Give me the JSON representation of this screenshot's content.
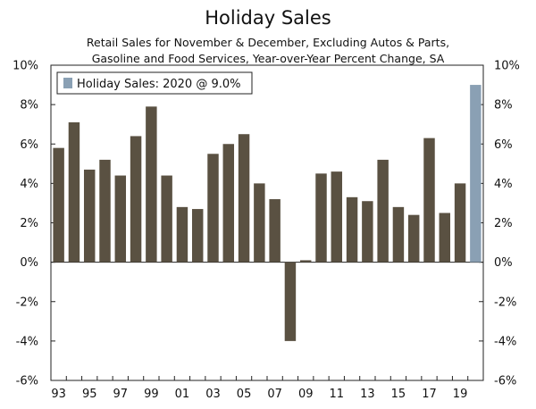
{
  "chart_data": {
    "type": "bar",
    "title": "Holiday Sales",
    "subtitle": [
      "Retail Sales for November & December, Excluding Autos & Parts,",
      "Gasoline and Food Services, Year-over-Year Percent Change, SA"
    ],
    "years": [
      1993,
      1994,
      1995,
      1996,
      1997,
      1998,
      1999,
      2000,
      2001,
      2002,
      2003,
      2004,
      2005,
      2006,
      2007,
      2008,
      2009,
      2010,
      2011,
      2012,
      2013,
      2014,
      2015,
      2016,
      2017,
      2018,
      2019,
      2020
    ],
    "values": [
      5.8,
      7.1,
      4.7,
      5.2,
      4.4,
      6.4,
      7.9,
      4.4,
      2.8,
      2.7,
      5.5,
      6.0,
      6.5,
      4.0,
      3.2,
      -4.0,
      0.1,
      4.5,
      4.6,
      3.3,
      3.1,
      5.2,
      2.8,
      2.4,
      6.3,
      2.5,
      4.0,
      9.0
    ],
    "x_tick_labels": [
      "93",
      "95",
      "97",
      "99",
      "01",
      "03",
      "05",
      "07",
      "09",
      "11",
      "13",
      "15",
      "17",
      "19"
    ],
    "x_tick_years": [
      1993,
      1995,
      1997,
      1999,
      2001,
      2003,
      2005,
      2007,
      2009,
      2011,
      2013,
      2015,
      2017,
      2019
    ],
    "y_ticks": [
      10,
      8,
      6,
      4,
      2,
      0,
      -2,
      -4,
      -6
    ],
    "y_tick_labels": [
      "10%",
      "8%",
      "6%",
      "4%",
      "2%",
      "0%",
      "-2%",
      "-4%",
      "-6%"
    ],
    "ylim": [
      -6,
      10
    ],
    "legend": {
      "label": "Holiday Sales: 2020 @ 9.0%",
      "position": "top-left"
    },
    "colors": {
      "bar": "#5a5142",
      "highlight": "#8aa0b4",
      "axis": "#222222"
    },
    "highlight_year": 2020
  }
}
